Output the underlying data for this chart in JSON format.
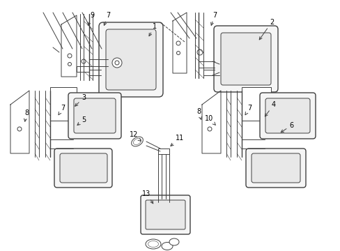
{
  "bg_color": "#ffffff",
  "line_color": "#404040",
  "label_color": "#000000",
  "figsize": [
    4.89,
    3.6
  ],
  "dpi": 100,
  "xlim": [
    0,
    489
  ],
  "ylim": [
    0,
    360
  ]
}
